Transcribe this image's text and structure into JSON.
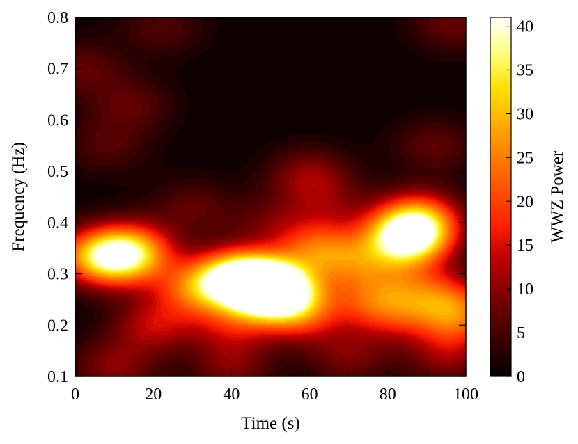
{
  "chart_data": {
    "type": "heatmap",
    "title": "",
    "xlabel": "Time (s)",
    "ylabel": "Frequency (Hz)",
    "colorbar_label": "WWZ Power",
    "xlim": [
      0,
      100
    ],
    "ylim": [
      0.1,
      0.8
    ],
    "clim": [
      0,
      41
    ],
    "x_ticks": [
      0,
      20,
      40,
      60,
      80,
      100
    ],
    "y_ticks": [
      0.1,
      0.2,
      0.3,
      0.4,
      0.5,
      0.6,
      0.7,
      0.8
    ],
    "colorbar_ticks": [
      0,
      5,
      10,
      15,
      20,
      25,
      30,
      35,
      40
    ],
    "colormap": [
      "#000000",
      "#3a0000",
      "#7a0000",
      "#c00000",
      "#ff2000",
      "#ff6000",
      "#ffa000",
      "#ffe000",
      "#ffff80",
      "#ffffff"
    ],
    "grid": false,
    "peaks": [
      {
        "time": 85,
        "frequency": 0.37,
        "power": 40
      },
      {
        "time": 47,
        "frequency": 0.28,
        "power": 35
      },
      {
        "time": 52,
        "frequency": 0.265,
        "power": 33
      },
      {
        "time": 40,
        "frequency": 0.295,
        "power": 26
      },
      {
        "time": 5,
        "frequency": 0.335,
        "power": 20
      },
      {
        "time": 12,
        "frequency": 0.33,
        "power": 20
      },
      {
        "time": 15,
        "frequency": 0.35,
        "power": 16
      },
      {
        "time": 62,
        "frequency": 0.35,
        "power": 18
      },
      {
        "time": 72,
        "frequency": 0.32,
        "power": 14
      },
      {
        "time": 88,
        "frequency": 0.41,
        "power": 20
      },
      {
        "time": 30,
        "frequency": 0.27,
        "power": 17
      },
      {
        "time": 58,
        "frequency": 0.22,
        "power": 15
      },
      {
        "time": 95,
        "frequency": 0.25,
        "power": 14
      },
      {
        "time": 98,
        "frequency": 0.21,
        "power": 15
      },
      {
        "time": 75,
        "frequency": 0.25,
        "power": 12
      },
      {
        "time": 20,
        "frequency": 0.2,
        "power": 12
      },
      {
        "time": 40,
        "frequency": 0.2,
        "power": 11
      },
      {
        "time": 82,
        "frequency": 0.22,
        "power": 11
      },
      {
        "time": 60,
        "frequency": 0.49,
        "power": 10
      },
      {
        "time": 10,
        "frequency": 0.12,
        "power": 9
      },
      {
        "time": 40,
        "frequency": 0.12,
        "power": 8
      },
      {
        "time": 70,
        "frequency": 0.14,
        "power": 8
      },
      {
        "time": 95,
        "frequency": 0.14,
        "power": 9
      },
      {
        "time": 85,
        "frequency": 0.28,
        "power": 10
      },
      {
        "time": 30,
        "frequency": 0.43,
        "power": 6
      },
      {
        "time": 2,
        "frequency": 0.7,
        "power": 6
      },
      {
        "time": 8,
        "frequency": 0.55,
        "power": 5
      },
      {
        "time": 14,
        "frequency": 0.63,
        "power": 6
      },
      {
        "time": 92,
        "frequency": 0.55,
        "power": 6
      },
      {
        "time": 97,
        "frequency": 0.79,
        "power": 7
      },
      {
        "time": 22,
        "frequency": 0.78,
        "power": 5
      },
      {
        "time": 50,
        "frequency": 0.4,
        "power": 6
      },
      {
        "time": 65,
        "frequency": 0.43,
        "power": 6
      }
    ]
  }
}
